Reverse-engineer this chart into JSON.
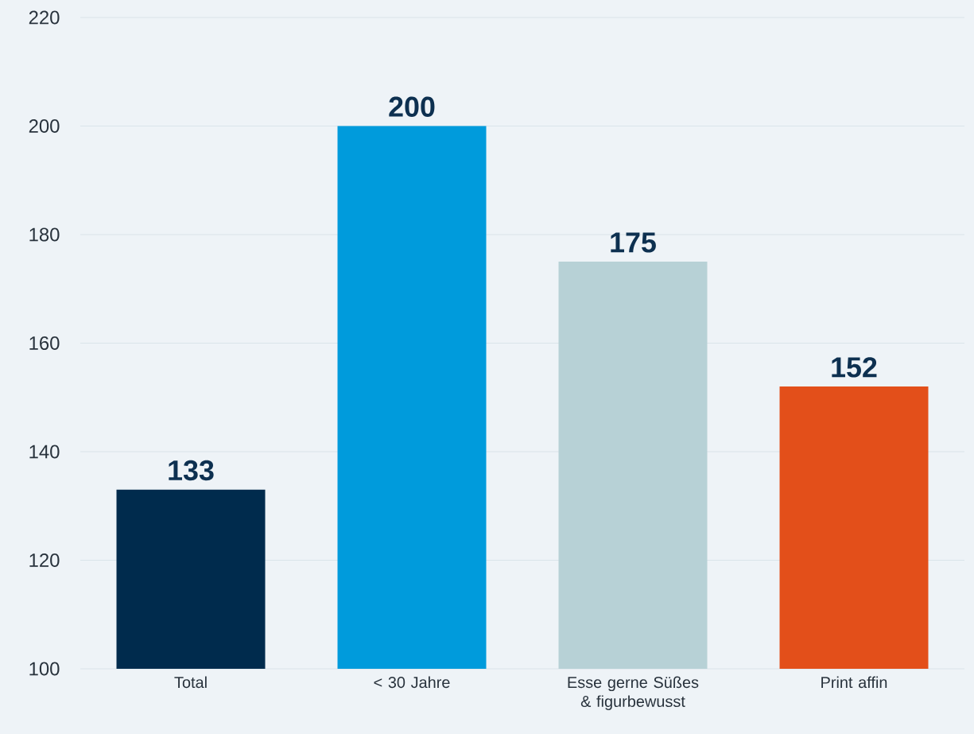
{
  "chart_data": {
    "type": "bar",
    "categories": [
      "Total",
      "< 30 Jahre",
      "Esse gerne Süßes & figurbewusst",
      "Print affin"
    ],
    "values": [
      133,
      200,
      175,
      152
    ],
    "colors": [
      "#002b4d",
      "#009bdc",
      "#b7d1d6",
      "#e34f1a"
    ],
    "ylim": [
      100,
      220
    ],
    "yticks": [
      100,
      120,
      140,
      160,
      180,
      200,
      220
    ],
    "grid": "y",
    "data_labels": true
  }
}
